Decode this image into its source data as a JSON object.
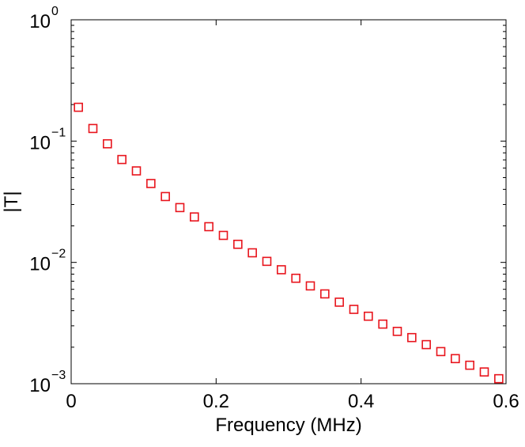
{
  "chart_data": {
    "type": "scatter",
    "xlabel": "Frequency (MHz)",
    "ylabel": "|T|",
    "xlim": [
      0,
      0.6
    ],
    "ylim": [
      0.001,
      1
    ],
    "yscale": "log",
    "grid": false,
    "marker": "square",
    "marker_color": "#e8141c",
    "x_ticks": [
      {
        "value": 0,
        "label": "0"
      },
      {
        "value": 0.2,
        "label": "0.2"
      },
      {
        "value": 0.4,
        "label": "0.4"
      },
      {
        "value": 0.6,
        "label": "0.6"
      }
    ],
    "y_ticks": [
      {
        "value": 1,
        "base": "10",
        "exp": "0"
      },
      {
        "value": 0.1,
        "base": "10",
        "exp": "−1"
      },
      {
        "value": 0.01,
        "base": "10",
        "exp": "−2"
      },
      {
        "value": 0.001,
        "base": "10",
        "exp": "−3"
      }
    ],
    "series": [
      {
        "x": [
          0.01,
          0.03,
          0.05,
          0.07,
          0.09,
          0.11,
          0.13,
          0.15,
          0.17,
          0.19,
          0.21,
          0.23,
          0.25,
          0.27,
          0.29,
          0.31,
          0.33,
          0.35,
          0.37,
          0.39,
          0.41,
          0.43,
          0.45,
          0.47,
          0.49,
          0.51,
          0.53,
          0.55,
          0.57,
          0.59
        ],
        "y": [
          0.19,
          0.127,
          0.095,
          0.0705,
          0.0568,
          0.0447,
          0.0349,
          0.0283,
          0.0237,
          0.0197,
          0.0167,
          0.0141,
          0.012,
          0.0102,
          0.0087,
          0.0074,
          0.0064,
          0.0055,
          0.0047,
          0.0041,
          0.0036,
          0.0031,
          0.0027,
          0.0024,
          0.0021,
          0.00184,
          0.00161,
          0.00142,
          0.00125,
          0.0011
        ]
      }
    ]
  }
}
